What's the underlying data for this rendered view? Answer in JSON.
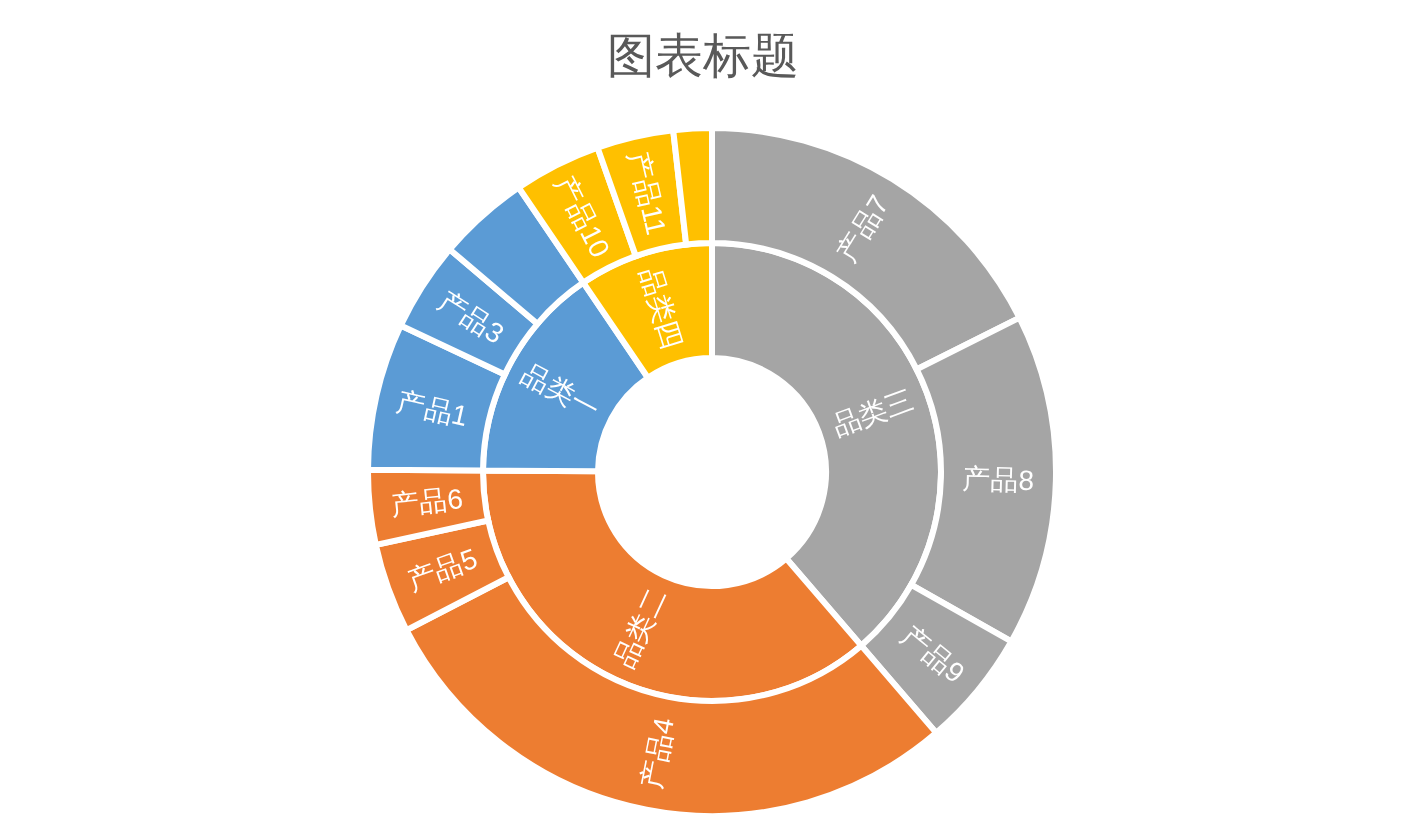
{
  "chart_data": [
    {
      "type": "donut",
      "title": "图表标题",
      "categories": [
        "品类三",
        "品类二",
        "品类一",
        "品类四"
      ],
      "values": [
        38.7,
        36.4,
        15.4,
        9.5
      ],
      "colors": [
        "#a5a5a5",
        "#ed7d31",
        "#5b9bd5",
        "#ffc000"
      ]
    },
    {
      "type": "donut",
      "categories": [
        "产品7",
        "产品8",
        "产品9",
        "产品4",
        "产品5",
        "产品6",
        "产品1",
        "产品3",
        null,
        "产品10",
        "产品11",
        null
      ],
      "values": [
        17.6,
        15.6,
        5.5,
        28.7,
        4.2,
        3.5,
        6.9,
        4.2,
        4.3,
        4.1,
        3.6,
        1.8
      ],
      "colors": [
        "#a5a5a5",
        "#a5a5a5",
        "#a5a5a5",
        "#ed7d31",
        "#ed7d31",
        "#ed7d31",
        "#5b9bd5",
        "#5b9bd5",
        "#5b9bd5",
        "#ffc000",
        "#ffc000",
        "#ffc000"
      ]
    }
  ]
}
